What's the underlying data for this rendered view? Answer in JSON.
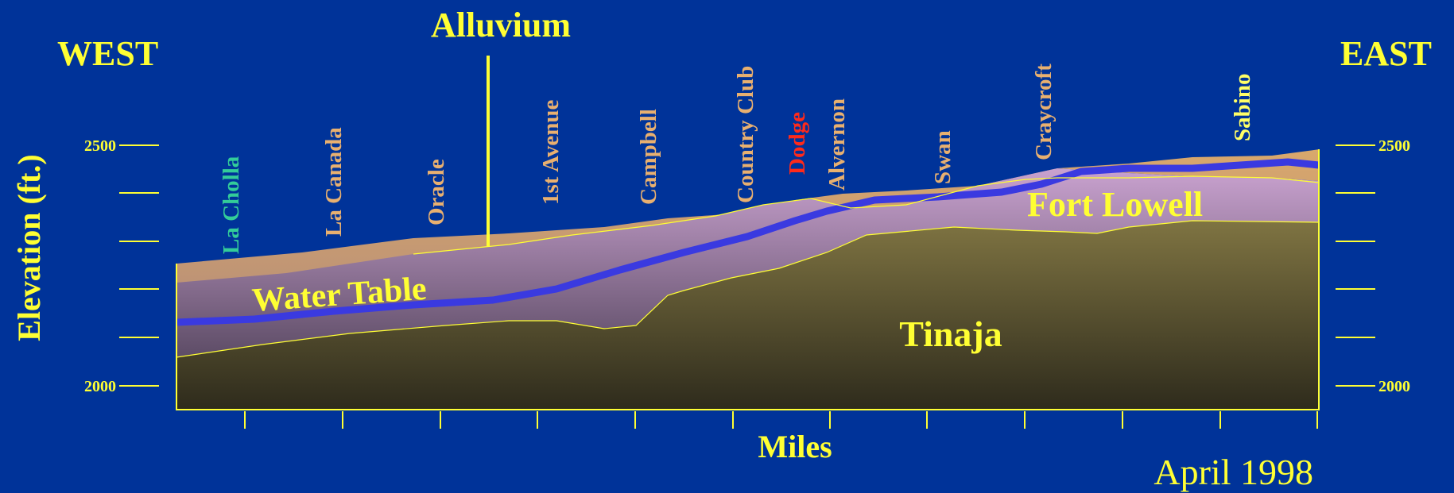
{
  "heading_left": "WEST",
  "heading_right": "EAST",
  "alluvium_label": "Alluvium",
  "ylabel": "Elevation (ft.)",
  "xlabel": "Miles",
  "date_label": "April 1998",
  "y_ticks": {
    "top": "2500",
    "bottom": "2000"
  },
  "units": {
    "water_table": "Water Table",
    "fort_lowell": "Fort Lowell",
    "tinaja": "Tinaja"
  },
  "streets": [
    {
      "name": "La Cholla",
      "color": "#33cc99"
    },
    {
      "name": "La Canada",
      "color": "#e8b070"
    },
    {
      "name": "Oracle",
      "color": "#e8b070"
    },
    {
      "name": "1st Avenue",
      "color": "#e8b070"
    },
    {
      "name": "Campbell",
      "color": "#e8b070"
    },
    {
      "name": "Country Club",
      "color": "#e8b070"
    },
    {
      "name": "Dodge",
      "color": "#ff2a1a"
    },
    {
      "name": "Alvernon",
      "color": "#e8b070"
    },
    {
      "name": "Swan",
      "color": "#e8b070"
    },
    {
      "name": "Craycroft",
      "color": "#e8b070"
    },
    {
      "name": "Sabino",
      "color": "#ffff66"
    }
  ],
  "colors": {
    "background": "#003399",
    "text_yellow": "#ffff33",
    "frame": "#ffff33",
    "alluvium": "#d9a86c",
    "fort_lowell": "#c79ac7",
    "tinaja": "#7a6e3e",
    "water_table": "#3a3ae0"
  }
}
